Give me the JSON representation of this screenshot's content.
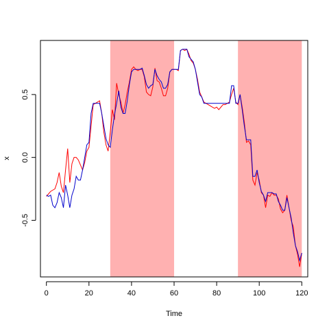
{
  "chart_data": {
    "type": "line",
    "xlabel": "Time",
    "ylabel": "x",
    "xlim": [
      -2.8,
      122.8
    ],
    "ylim": [
      -0.95,
      0.93
    ],
    "x_ticks": [
      0,
      20,
      40,
      60,
      80,
      100,
      120
    ],
    "y_ticks": [
      -0.5,
      0.0,
      0.5
    ],
    "x_tick_labels": [
      "0",
      "20",
      "40",
      "60",
      "80",
      "100",
      "120"
    ],
    "y_tick_labels": [
      "-0.5",
      "0.0",
      "0.5"
    ],
    "grid": false,
    "legend": "none",
    "shaded_regions": [
      {
        "x_start": 30,
        "x_end": 60,
        "color": "#ffb1b1"
      },
      {
        "x_start": 90,
        "x_end": 120,
        "color": "#ffb1b1"
      }
    ],
    "series": [
      {
        "color": "#ff0000",
        "x": [
          0,
          1,
          2,
          3,
          4,
          5,
          6,
          7,
          8,
          9,
          10,
          11,
          12,
          13,
          14,
          15,
          16,
          17,
          18,
          19,
          20,
          21,
          22,
          23,
          24,
          25,
          26,
          27,
          28,
          29,
          30,
          31,
          32,
          33,
          34,
          35,
          36,
          37,
          38,
          39,
          40,
          41,
          42,
          43,
          44,
          45,
          46,
          47,
          48,
          49,
          50,
          51,
          52,
          53,
          54,
          55,
          56,
          57,
          58,
          59,
          60,
          61,
          62,
          63,
          64,
          65,
          66,
          67,
          68,
          69,
          70,
          71,
          72,
          73,
          74,
          75,
          76,
          77,
          78,
          79,
          80,
          81,
          82,
          83,
          84,
          85,
          86,
          87,
          88,
          89,
          90,
          91,
          92,
          93,
          94,
          95,
          96,
          97,
          98,
          99,
          100,
          101,
          102,
          103,
          104,
          105,
          106,
          107,
          108,
          109,
          110,
          111,
          112,
          113,
          114,
          115,
          116,
          117,
          118,
          119,
          120
        ],
        "values": [
          -0.31,
          -0.29,
          -0.27,
          -0.26,
          -0.25,
          -0.2,
          -0.12,
          -0.23,
          -0.28,
          -0.1,
          0.07,
          -0.2,
          -0.05,
          0.0,
          0.0,
          -0.02,
          -0.06,
          -0.1,
          -0.04,
          0.05,
          0.08,
          0.25,
          0.42,
          0.43,
          0.44,
          0.45,
          0.35,
          0.2,
          0.1,
          0.05,
          0.2,
          0.38,
          0.3,
          0.59,
          0.5,
          0.44,
          0.35,
          0.42,
          0.52,
          0.6,
          0.7,
          0.72,
          0.7,
          0.69,
          0.7,
          0.7,
          0.64,
          0.52,
          0.5,
          0.49,
          0.56,
          0.71,
          0.61,
          0.6,
          0.55,
          0.49,
          0.49,
          0.55,
          0.68,
          0.7,
          0.7,
          0.7,
          0.69,
          0.85,
          0.86,
          0.85,
          0.86,
          0.82,
          0.77,
          0.75,
          0.7,
          0.62,
          0.52,
          0.48,
          0.44,
          0.43,
          0.42,
          0.41,
          0.4,
          0.39,
          0.4,
          0.38,
          0.4,
          0.42,
          0.42,
          0.43,
          0.44,
          0.5,
          0.55,
          0.44,
          0.42,
          0.5,
          0.4,
          0.28,
          0.12,
          0.13,
          0.1,
          -0.18,
          -0.22,
          -0.12,
          -0.18,
          -0.28,
          -0.3,
          -0.4,
          -0.3,
          -0.31,
          -0.28,
          -0.3,
          -0.3,
          -0.33,
          -0.41,
          -0.44,
          -0.42,
          -0.3,
          -0.4,
          -0.5,
          -0.55,
          -0.7,
          -0.77,
          -0.87,
          -0.76
        ]
      },
      {
        "color": "#0000cc",
        "x": [
          0,
          1,
          2,
          3,
          4,
          5,
          6,
          7,
          8,
          9,
          10,
          11,
          12,
          13,
          14,
          15,
          16,
          17,
          18,
          19,
          20,
          21,
          22,
          23,
          24,
          25,
          26,
          27,
          28,
          29,
          30,
          31,
          32,
          33,
          34,
          35,
          36,
          37,
          38,
          39,
          40,
          41,
          42,
          43,
          44,
          45,
          46,
          47,
          48,
          49,
          50,
          51,
          52,
          53,
          54,
          55,
          56,
          57,
          58,
          59,
          60,
          61,
          62,
          63,
          64,
          65,
          66,
          67,
          68,
          69,
          70,
          71,
          72,
          73,
          74,
          75,
          76,
          77,
          78,
          79,
          80,
          81,
          82,
          83,
          84,
          85,
          86,
          87,
          88,
          89,
          90,
          91,
          92,
          93,
          94,
          95,
          96,
          97,
          98,
          99,
          100,
          101,
          102,
          103,
          104,
          105,
          106,
          107,
          108,
          109,
          110,
          111,
          112,
          113,
          114,
          115,
          116,
          117,
          118,
          119,
          120
        ],
        "values": [
          -0.3,
          -0.31,
          -0.3,
          -0.38,
          -0.4,
          -0.36,
          -0.28,
          -0.32,
          -0.4,
          -0.22,
          -0.3,
          -0.4,
          -0.3,
          -0.25,
          -0.15,
          -0.18,
          -0.18,
          -0.1,
          0.0,
          0.1,
          0.12,
          0.35,
          0.43,
          0.43,
          0.43,
          0.43,
          0.35,
          0.25,
          0.15,
          0.1,
          0.08,
          0.22,
          0.34,
          0.43,
          0.53,
          0.4,
          0.35,
          0.35,
          0.45,
          0.58,
          0.68,
          0.7,
          0.7,
          0.7,
          0.7,
          0.71,
          0.65,
          0.58,
          0.55,
          0.57,
          0.58,
          0.7,
          0.65,
          0.62,
          0.6,
          0.55,
          0.55,
          0.58,
          0.68,
          0.7,
          0.7,
          0.7,
          0.7,
          0.85,
          0.86,
          0.86,
          0.86,
          0.8,
          0.78,
          0.76,
          0.7,
          0.6,
          0.5,
          0.48,
          0.43,
          0.43,
          0.43,
          0.43,
          0.43,
          0.43,
          0.43,
          0.43,
          0.43,
          0.43,
          0.43,
          0.43,
          0.43,
          0.57,
          0.57,
          0.43,
          0.43,
          0.5,
          0.38,
          0.25,
          0.14,
          0.14,
          0.14,
          -0.15,
          -0.15,
          -0.1,
          -0.2,
          -0.27,
          -0.3,
          -0.35,
          -0.28,
          -0.28,
          -0.28,
          -0.29,
          -0.29,
          -0.35,
          -0.38,
          -0.42,
          -0.42,
          -0.32,
          -0.4,
          -0.48,
          -0.6,
          -0.7,
          -0.75,
          -0.82,
          -0.76
        ]
      }
    ]
  }
}
